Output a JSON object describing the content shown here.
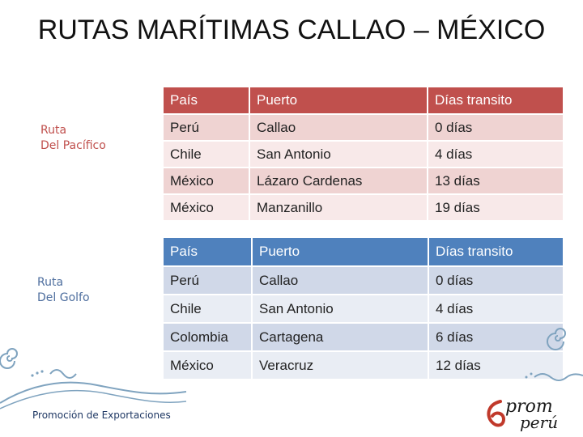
{
  "slide": {
    "title": "RUTAS MARÍTIMAS CALLAO – MÉXICO",
    "footer": "Promoción de Exportaciones"
  },
  "pacifico": {
    "label_line1": "Ruta",
    "label_line2": "Del Pacífico",
    "headers": [
      "País",
      "Puerto",
      "Días transito"
    ],
    "rows": [
      [
        "Perú",
        "Callao",
        "0 días"
      ],
      [
        "Chile",
        "San Antonio",
        "4 días"
      ],
      [
        "México",
        "Lázaro Cardenas",
        "13 días"
      ],
      [
        "México",
        "Manzanillo",
        "19 días"
      ]
    ]
  },
  "golfo": {
    "label_line1": "Ruta",
    "label_line2": "Del Golfo",
    "headers": [
      "País",
      "Puerto",
      "Días transito"
    ],
    "rows": [
      [
        "Perú",
        "Callao",
        "0 días"
      ],
      [
        "Chile",
        "San Antonio",
        "4 días"
      ],
      [
        "Colombia",
        "Cartagena",
        "6 días"
      ],
      [
        "México",
        "Veracruz",
        "12 días"
      ]
    ]
  },
  "logo": {
    "line1": "prom",
    "line2": "perú",
    "accent_color": "#c0392b"
  }
}
